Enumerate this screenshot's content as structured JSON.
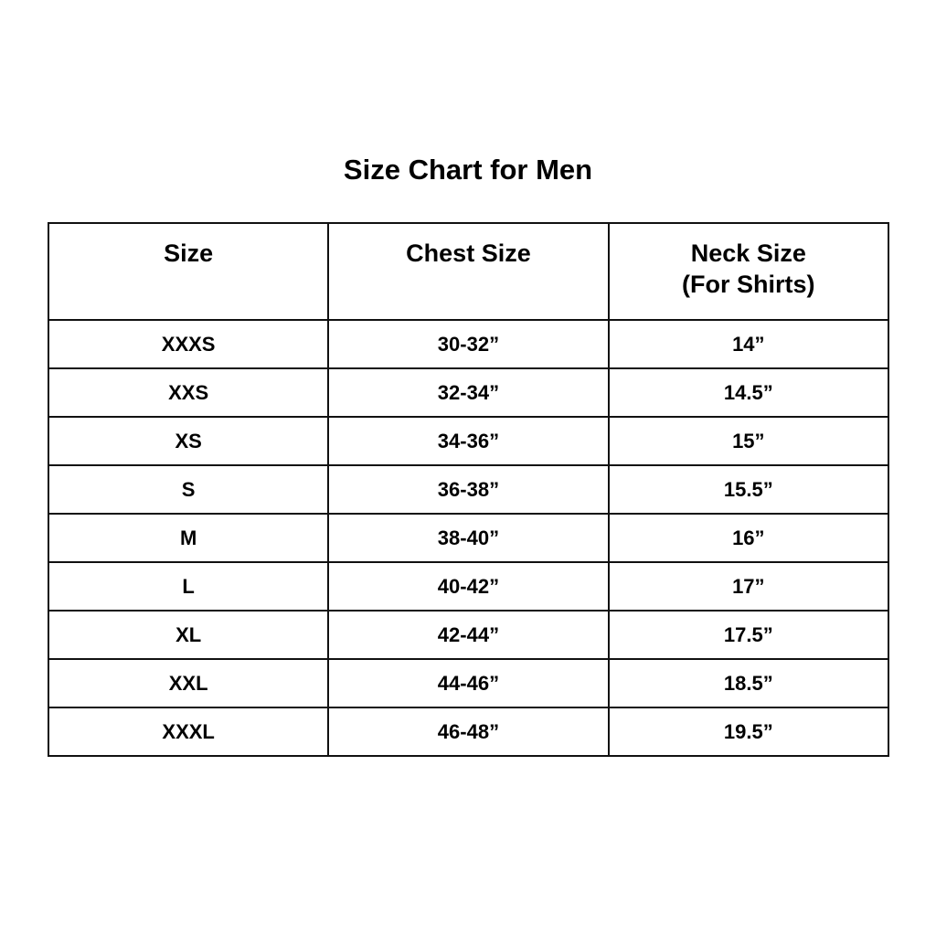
{
  "title": "Size Chart for Men",
  "headers": [
    "Size",
    "Chest Size",
    "Neck Size"
  ],
  "neck_subheader": "(For Shirts)",
  "rows": [
    [
      "XXXS",
      "30-32”",
      "14”"
    ],
    [
      "XXS",
      "32-34”",
      "14.5”"
    ],
    [
      "XS",
      "34-36”",
      "15”"
    ],
    [
      "S",
      "36-38”",
      "15.5”"
    ],
    [
      "M",
      "38-40”",
      "16”"
    ],
    [
      "L",
      "40-42”",
      "17”"
    ],
    [
      "XL",
      "42-44”",
      "17.5”"
    ],
    [
      "XXL",
      "44-46”",
      "18.5”"
    ],
    [
      "XXXL",
      "46-48”",
      "19.5”"
    ]
  ]
}
